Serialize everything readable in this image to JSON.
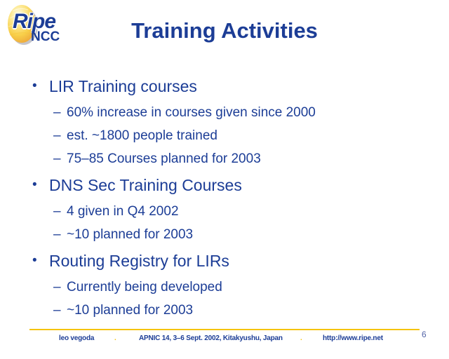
{
  "colors": {
    "text_blue": "#1c3d96",
    "accent_gold": "#f5c40f"
  },
  "logo": {
    "brand": "Ripe",
    "org": "NCC"
  },
  "title": "Training Activities",
  "page_number": "6",
  "bullets": {
    "l1_marker": "•",
    "l2_marker": "–",
    "sections": [
      {
        "label": "LIR Training courses",
        "items": [
          "60% increase in courses given since 2000",
          "est. ~1800 people trained",
          "75–85 Courses planned for 2003"
        ]
      },
      {
        "label": "DNS Sec Training Courses",
        "items": [
          "4 given in Q4 2002",
          "~10 planned for 2003"
        ]
      },
      {
        "label": "Routing Registry for LIRs",
        "items": [
          "Currently being developed",
          "~10 planned for 2003"
        ]
      }
    ]
  },
  "footer": {
    "author": "leo vegoda",
    "separator": ".",
    "event": "APNIC 14, 3–6 Sept. 2002, Kitakyushu, Japan",
    "url": "http://www.ripe.net"
  }
}
